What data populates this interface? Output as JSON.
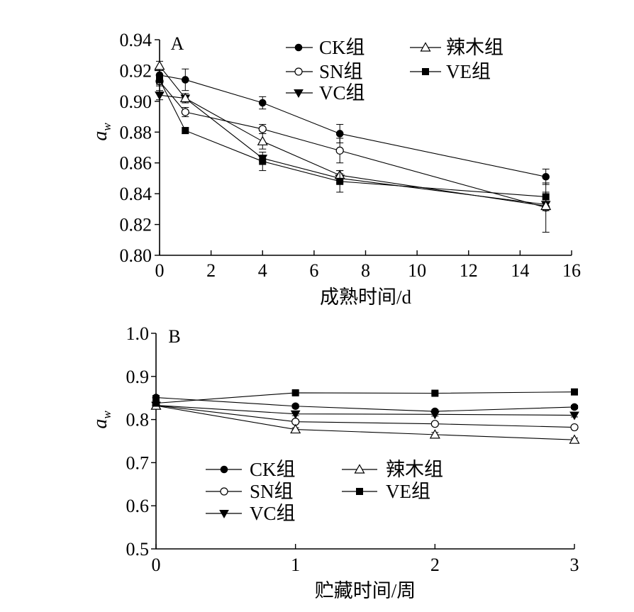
{
  "chart_data": [
    {
      "type": "line",
      "panel_label": "A",
      "xlabel": "成熟时间/d",
      "ylabel": "a",
      "ylabel_sub": "w",
      "xlim": [
        0,
        16
      ],
      "ylim": [
        0.8,
        0.94
      ],
      "x_ticks": [
        "0",
        "2",
        "4",
        "6",
        "8",
        "10",
        "12",
        "14",
        "16"
      ],
      "y_ticks": [
        "0.80",
        "0.82",
        "0.84",
        "0.86",
        "0.88",
        "0.90",
        "0.92",
        "0.94"
      ],
      "grid": false,
      "legend_position": "top",
      "x": [
        0,
        1,
        4,
        7,
        15
      ],
      "series": [
        {
          "name": "CK组",
          "marker": "filled-circle",
          "values": [
            0.917,
            0.914,
            0.899,
            0.879,
            0.851
          ],
          "errors": [
            0.003,
            0.007,
            0.004,
            0.006,
            0.005
          ]
        },
        {
          "name": "SN组",
          "marker": "open-circle",
          "values": [
            0.913,
            0.893,
            0.882,
            0.868,
            0.831
          ],
          "errors": [
            0.003,
            0.003,
            0.003,
            0.008,
            0.016
          ]
        },
        {
          "name": "VC组",
          "marker": "filled-triangle-down",
          "values": [
            0.904,
            0.902,
            0.863,
            0.85,
            0.833
          ],
          "errors": [
            0.003,
            0.003,
            0.002,
            0.003,
            0.003
          ]
        },
        {
          "name": "辣木组",
          "marker": "open-triangle-up",
          "values": [
            0.923,
            0.902,
            0.874,
            0.852,
            0.832
          ],
          "errors": [
            0.003,
            0.003,
            0.005,
            0.003,
            0.003
          ]
        },
        {
          "name": "VE组",
          "marker": "filled-square",
          "values": [
            0.914,
            0.881,
            0.861,
            0.848,
            0.838
          ],
          "errors": [
            0.003,
            0.002,
            0.006,
            0.007,
            0.003
          ]
        }
      ]
    },
    {
      "type": "line",
      "panel_label": "B",
      "xlabel": "贮藏时间/周",
      "ylabel": "a",
      "ylabel_sub": "w",
      "xlim": [
        0,
        3
      ],
      "ylim": [
        0.5,
        1.0
      ],
      "x_ticks": [
        "0",
        "1",
        "2",
        "3"
      ],
      "y_ticks": [
        "0.5",
        "0.6",
        "0.7",
        "0.8",
        "0.9",
        "1.0"
      ],
      "grid": false,
      "legend_position": "bottom-left",
      "x": [
        0,
        1,
        2,
        3
      ],
      "series": [
        {
          "name": "CK组",
          "marker": "filled-circle",
          "values": [
            0.851,
            0.831,
            0.819,
            0.829
          ],
          "errors": [
            0.005,
            0.004,
            0.004,
            0.004
          ]
        },
        {
          "name": "SN组",
          "marker": "open-circle",
          "values": [
            0.833,
            0.795,
            0.79,
            0.782
          ],
          "errors": [
            0.003,
            0.004,
            0.004,
            0.004
          ]
        },
        {
          "name": "VC组",
          "marker": "filled-triangle-down",
          "values": [
            0.833,
            0.813,
            0.812,
            0.81
          ],
          "errors": [
            0.003,
            0.004,
            0.004,
            0.004
          ]
        },
        {
          "name": "辣木组",
          "marker": "open-triangle-up",
          "values": [
            0.832,
            0.777,
            0.765,
            0.753
          ],
          "errors": [
            0.003,
            0.004,
            0.005,
            0.004
          ]
        },
        {
          "name": "VE组",
          "marker": "filled-square",
          "values": [
            0.838,
            0.862,
            0.861,
            0.864
          ],
          "errors": [
            0.003,
            0.004,
            0.003,
            0.003
          ]
        }
      ]
    }
  ]
}
